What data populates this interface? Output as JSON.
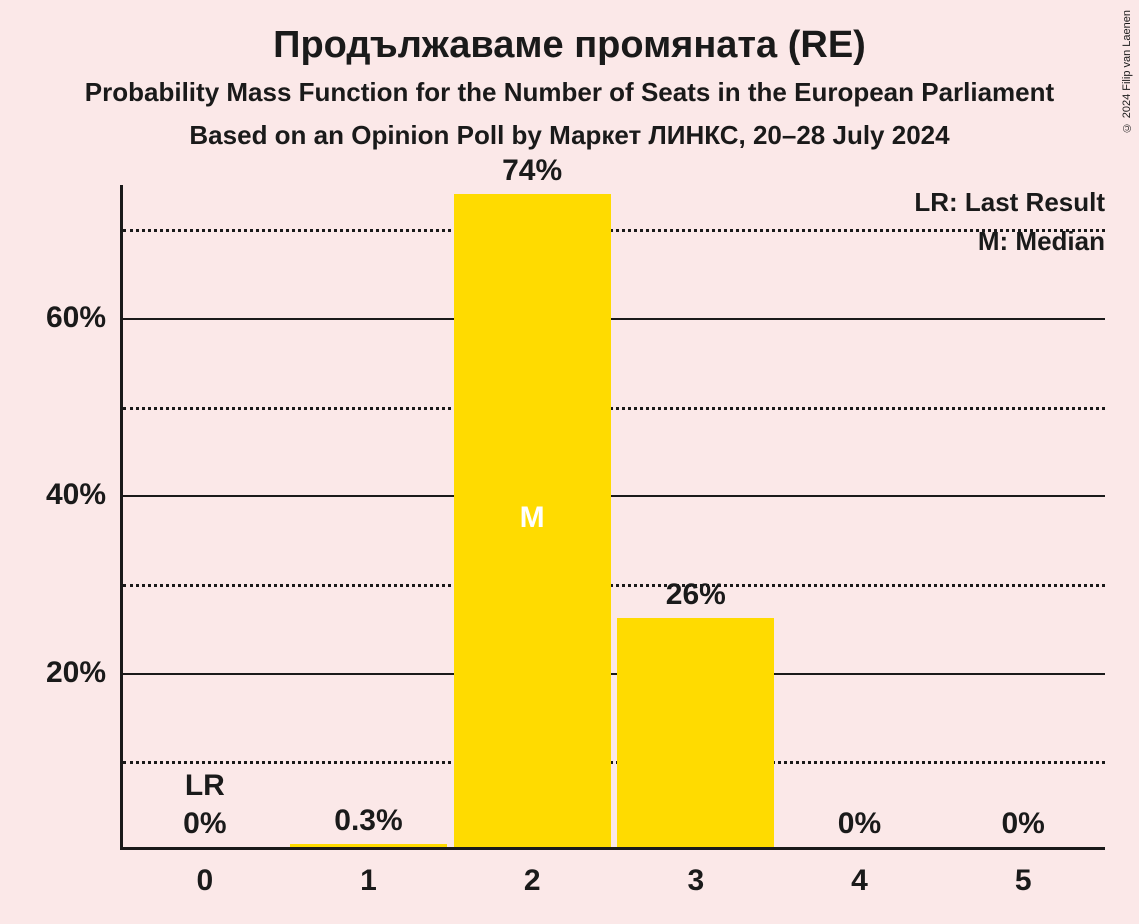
{
  "title": {
    "main": "Продължаваме промяната (RE)",
    "sub1": "Probability Mass Function for the Number of Seats in the European Parliament",
    "sub2": "Based on an Opinion Poll by Маркет ЛИНКС, 20–28 July 2024"
  },
  "copyright": "© 2024 Filip van Laenen",
  "legend": {
    "lr": "LR: Last Result",
    "m": "M: Median"
  },
  "chart": {
    "type": "bar",
    "background_color": "#fbe8e8",
    "bar_color": "#ffdb00",
    "axis_color": "#1a1a1a",
    "grid_color": "#1a1a1a",
    "text_color": "#1a1a1a",
    "median_label_color": "#ffffff",
    "ylim": [
      0,
      75
    ],
    "y_ticks_major": [
      20,
      40,
      60
    ],
    "y_ticks_minor": [
      10,
      30,
      50,
      70
    ],
    "y_tick_labels": {
      "20": "20%",
      "40": "40%",
      "60": "60%"
    },
    "categories": [
      "0",
      "1",
      "2",
      "3",
      "4",
      "5"
    ],
    "values": [
      0,
      0.3,
      74,
      26,
      0,
      0
    ],
    "value_labels": [
      "0%",
      "0.3%",
      "74%",
      "26%",
      "0%",
      "0%"
    ],
    "annotations": [
      {
        "index": 0,
        "text": "LR",
        "position": "above_value",
        "color": "#1a1a1a"
      },
      {
        "index": 2,
        "text": "M",
        "position": "inside",
        "color": "#ffffff"
      }
    ],
    "bar_width_ratio": 0.96,
    "title_fontsize": 38,
    "subtitle_fontsize": 26,
    "tick_fontsize": 30,
    "value_fontsize": 30,
    "legend_fontsize": 26
  }
}
